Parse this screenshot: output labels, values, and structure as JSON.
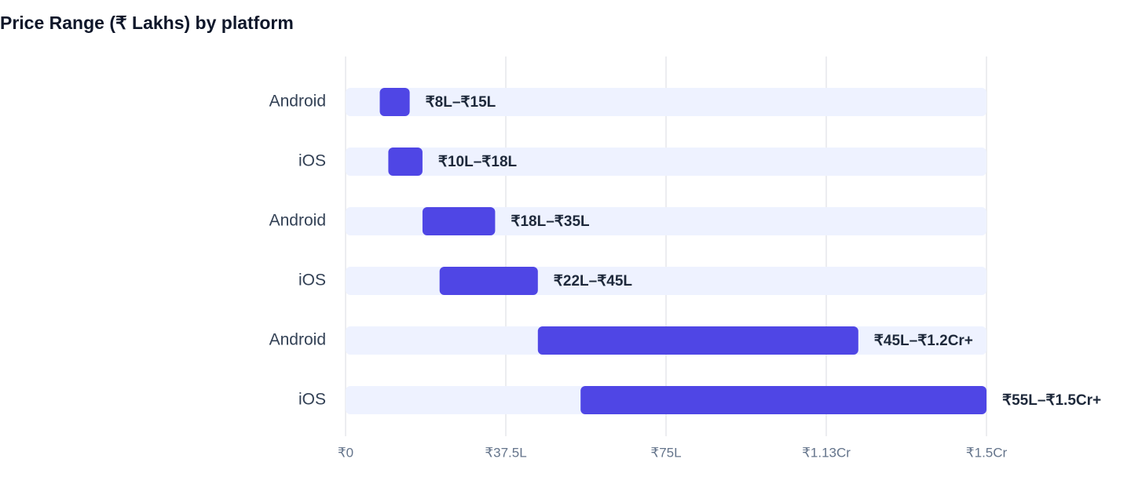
{
  "chart_data": {
    "type": "range-bar",
    "orientation": "horizontal",
    "title": "Price Range (₹ Lakhs) by platform",
    "categories": [
      "Android",
      "iOS",
      "Android",
      "iOS",
      "Android",
      "iOS"
    ],
    "low": [
      8,
      10,
      18,
      22,
      45,
      55
    ],
    "high": [
      15,
      18,
      35,
      45,
      120,
      150
    ],
    "value_labels": [
      "₹8L–₹15L",
      "₹10L–₹18L",
      "₹18L–₹35L",
      "₹22L–₹45L",
      "₹45L–₹1.2Cr+",
      "₹55L–₹1.5Cr+"
    ],
    "color": "#4f46e5",
    "track_color": "#eef2ff",
    "xlim": [
      0,
      150
    ],
    "xticks": [
      {
        "value": 0,
        "label": "₹0"
      },
      {
        "value": 37.5,
        "label": "₹37.5L"
      },
      {
        "value": 75,
        "label": "₹75L"
      },
      {
        "value": 112.5,
        "label": "₹1.13Cr"
      },
      {
        "value": 150,
        "label": "₹1.5Cr"
      }
    ],
    "grid": true
  }
}
